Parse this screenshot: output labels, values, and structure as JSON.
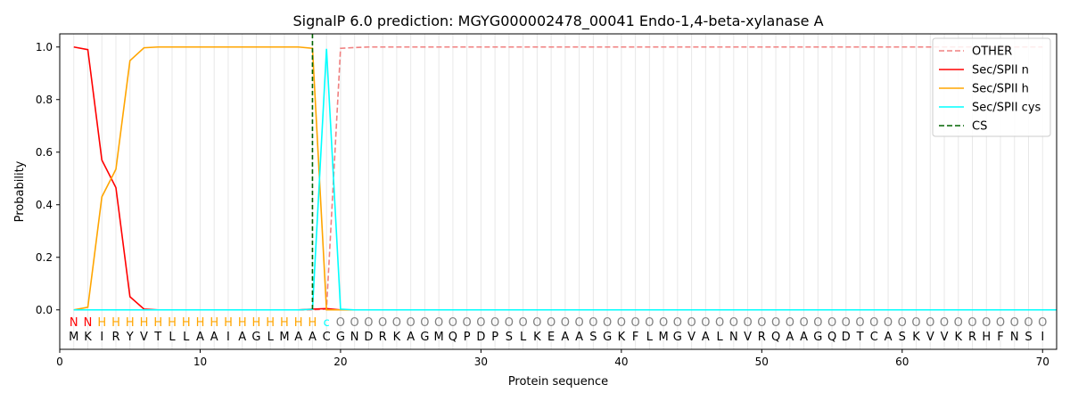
{
  "chart_data": {
    "type": "line",
    "title": "SignalP 6.0 prediction: MGYG000002478_00041 Endo-1,4-beta-xylanase A",
    "xlabel": "Protein sequence",
    "ylabel": "Probability",
    "xlim": [
      0,
      71
    ],
    "ylim": [
      -0.15,
      1.05
    ],
    "xticks": [
      0,
      10,
      20,
      30,
      40,
      50,
      60,
      70
    ],
    "yticks": [
      0.0,
      0.2,
      0.4,
      0.6,
      0.8,
      1.0
    ],
    "x_tick_labels": [
      "0",
      "10",
      "20",
      "30",
      "40",
      "50",
      "60",
      "70"
    ],
    "y_tick_labels": [
      "0.0",
      "0.2",
      "0.4",
      "0.6",
      "0.8",
      "1.0"
    ],
    "grid": "vertical lines at each residue",
    "legend_position": "top-right",
    "sequence": [
      "M",
      "K",
      "I",
      "R",
      "Y",
      "V",
      "T",
      "L",
      "L",
      "A",
      "A",
      "I",
      "A",
      "G",
      "L",
      "M",
      "A",
      "A",
      "C",
      "G",
      "N",
      "D",
      "R",
      "K",
      "A",
      "G",
      "M",
      "Q",
      "P",
      "D",
      "P",
      "S",
      "L",
      "K",
      "E",
      "A",
      "A",
      "S",
      "G",
      "K",
      "F",
      "L",
      "M",
      "G",
      "V",
      "A",
      "L",
      "N",
      "V",
      "R",
      "Q",
      "A",
      "A",
      "G",
      "Q",
      "D",
      "T",
      "C",
      "A",
      "S",
      "K",
      "V",
      "V",
      "K",
      "R",
      "H",
      "F",
      "N",
      "S",
      "I"
    ],
    "region_labels": [
      "N",
      "N",
      "H",
      "H",
      "H",
      "H",
      "H",
      "H",
      "H",
      "H",
      "H",
      "H",
      "H",
      "H",
      "H",
      "H",
      "H",
      "H",
      "c",
      "O",
      "O",
      "O",
      "O",
      "O",
      "O",
      "O",
      "O",
      "O",
      "O",
      "O",
      "O",
      "O",
      "O",
      "O",
      "O",
      "O",
      "O",
      "O",
      "O",
      "O",
      "O",
      "O",
      "O",
      "O",
      "O",
      "O",
      "O",
      "O",
      "O",
      "O",
      "O",
      "O",
      "O",
      "O",
      "O",
      "O",
      "O",
      "O",
      "O",
      "O",
      "O",
      "O",
      "O",
      "O",
      "O",
      "O",
      "O",
      "O",
      "O",
      "O"
    ],
    "region_colors": {
      "N": "#ff0000",
      "H": "#ffa500",
      "c": "#00ffff",
      "O": "#808080"
    },
    "cleavage_site": 18,
    "series": [
      {
        "name": "OTHER",
        "color": "#f08080",
        "dash": "dashed",
        "values": [
          0,
          0,
          0,
          0,
          0,
          0,
          0,
          0,
          0,
          0,
          0,
          0,
          0,
          0,
          0,
          0,
          0,
          0,
          0.003,
          0.995,
          0.998,
          1,
          1,
          1,
          1,
          1,
          1,
          1,
          1,
          1,
          1,
          1,
          1,
          1,
          1,
          1,
          1,
          1,
          1,
          1,
          1,
          1,
          1,
          1,
          1,
          1,
          1,
          1,
          1,
          1,
          1,
          1,
          1,
          1,
          1,
          1,
          1,
          1,
          1,
          1,
          1,
          1,
          1,
          1,
          1,
          1,
          1,
          1,
          1,
          1
        ]
      },
      {
        "name": "Sec/SPII n",
        "color": "#ff0000",
        "dash": "solid",
        "values": [
          1.0,
          0.99,
          0.57,
          0.465,
          0.05,
          0.003,
          0,
          0,
          0,
          0,
          0,
          0,
          0,
          0,
          0,
          0,
          0,
          0.003,
          0.005,
          0,
          0,
          0,
          0,
          0,
          0,
          0,
          0,
          0,
          0,
          0,
          0,
          0,
          0,
          0,
          0,
          0,
          0,
          0,
          0,
          0,
          0,
          0,
          0,
          0,
          0,
          0,
          0,
          0,
          0,
          0,
          0,
          0,
          0,
          0,
          0,
          0,
          0,
          0,
          0,
          0,
          0,
          0,
          0,
          0,
          0,
          0,
          0,
          0,
          0,
          0
        ]
      },
      {
        "name": "Sec/SPII h",
        "color": "#ffa500",
        "dash": "solid",
        "values": [
          0.0,
          0.01,
          0.43,
          0.535,
          0.948,
          0.997,
          1.0,
          1.0,
          1.0,
          1.0,
          1.0,
          1.0,
          1.0,
          1.0,
          1.0,
          1.0,
          1.0,
          0.995,
          0.0,
          0,
          0,
          0,
          0,
          0,
          0,
          0,
          0,
          0,
          0,
          0,
          0,
          0,
          0,
          0,
          0,
          0,
          0,
          0,
          0,
          0,
          0,
          0,
          0,
          0,
          0,
          0,
          0,
          0,
          0,
          0,
          0,
          0,
          0,
          0,
          0,
          0,
          0,
          0,
          0,
          0,
          0,
          0,
          0,
          0,
          0,
          0,
          0,
          0,
          0,
          0
        ]
      },
      {
        "name": "Sec/SPII cys",
        "color": "#00ffff",
        "dash": "solid",
        "values": [
          0,
          0,
          0,
          0,
          0,
          0,
          0,
          0,
          0,
          0,
          0,
          0,
          0,
          0,
          0,
          0,
          0,
          0.002,
          0.993,
          0.003,
          0,
          0,
          0,
          0,
          0,
          0,
          0,
          0,
          0,
          0,
          0,
          0,
          0,
          0,
          0,
          0,
          0,
          0,
          0,
          0,
          0,
          0,
          0,
          0,
          0,
          0,
          0,
          0,
          0,
          0,
          0,
          0,
          0,
          0,
          0,
          0,
          0,
          0,
          0,
          0,
          0,
          0,
          0,
          0,
          0,
          0,
          0,
          0,
          0,
          0,
          0
        ]
      },
      {
        "name": "CS",
        "color": "#006400",
        "dash": "dashed",
        "values": []
      }
    ]
  }
}
